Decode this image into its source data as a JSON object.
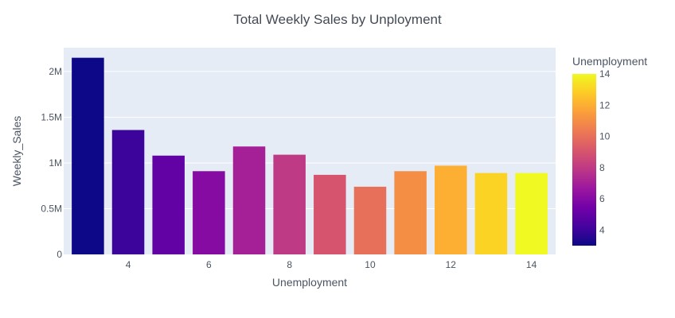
{
  "chart_data": {
    "type": "bar",
    "title": "Total Weekly Sales by Unployment",
    "xlabel": "Unemployment",
    "ylabel": "Weekly_Sales",
    "x": [
      3,
      4,
      5,
      6,
      7,
      8,
      9,
      10,
      11,
      12,
      13,
      14
    ],
    "values": [
      2150000,
      1360000,
      1080000,
      910000,
      1180000,
      1090000,
      870000,
      740000,
      910000,
      970000,
      890000,
      890000
    ],
    "xlim": [
      2.4,
      14.6
    ],
    "ylim": [
      0,
      2260000
    ],
    "x_ticks": [
      4,
      6,
      8,
      10,
      12,
      14
    ],
    "x_tick_labels": [
      "4",
      "6",
      "8",
      "10",
      "12",
      "14"
    ],
    "y_ticks": [
      0,
      500000,
      1000000,
      1500000,
      2000000
    ],
    "y_tick_labels": [
      "0",
      "0.5M",
      "1M",
      "1.5M",
      "2M"
    ],
    "grid": true,
    "plot_bg": "#e5ecf6",
    "colorbar": {
      "title": "Unemployment",
      "range": [
        3,
        14
      ],
      "ticks": [
        4,
        6,
        8,
        10,
        12,
        14
      ],
      "tick_labels": [
        "4",
        "6",
        "8",
        "10",
        "12",
        "14"
      ],
      "colorscale": [
        "#0d0887",
        "#46039f",
        "#7201a8",
        "#9c179e",
        "#bd3786",
        "#d8576b",
        "#ed7953",
        "#fb9f3a",
        "#fdca26",
        "#f0f921"
      ]
    }
  }
}
